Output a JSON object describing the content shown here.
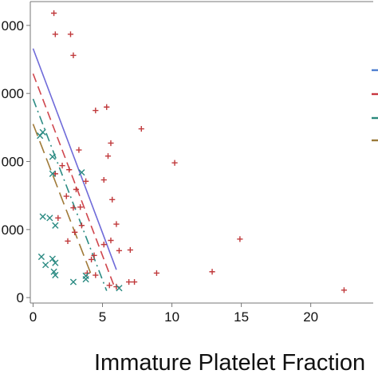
{
  "chart_data": {
    "type": "scatter",
    "xlabel": "Immature Platelet Fraction",
    "x_ticks": [
      0,
      5,
      10,
      15,
      20
    ],
    "x_tick_labels": [
      "0",
      "5",
      "10",
      "15",
      "20"
    ],
    "xlim": [
      -0.2,
      24.5
    ],
    "y_ticks": [
      0,
      1000,
      2000,
      3000,
      4000
    ],
    "y_tick_labels": [
      "0",
      "000",
      "000",
      "000",
      "000"
    ],
    "ylim": [
      -80,
      4350
    ],
    "grid": false,
    "legend_position": "right",
    "series": [
      {
        "marker": "plus",
        "color": "#c0393b",
        "points": [
          [
            1.5,
            4180
          ],
          [
            1.6,
            3870
          ],
          [
            2.7,
            3870
          ],
          [
            2.9,
            3560
          ],
          [
            5.3,
            2800
          ],
          [
            4.5,
            2750
          ],
          [
            7.8,
            2480
          ],
          [
            5.6,
            2270
          ],
          [
            3.3,
            2170
          ],
          [
            5.4,
            2080
          ],
          [
            10.2,
            1980
          ],
          [
            2.1,
            1940
          ],
          [
            2.6,
            1880
          ],
          [
            1.6,
            1820
          ],
          [
            3.8,
            1710
          ],
          [
            5.1,
            1730
          ],
          [
            3.1,
            1590
          ],
          [
            5.7,
            1440
          ],
          [
            2.4,
            1490
          ],
          [
            2.9,
            1320
          ],
          [
            3.4,
            1330
          ],
          [
            1.8,
            1170
          ],
          [
            3.5,
            1060
          ],
          [
            6.0,
            1080
          ],
          [
            3.0,
            960
          ],
          [
            5.6,
            840
          ],
          [
            14.9,
            860
          ],
          [
            2.5,
            830
          ],
          [
            5.1,
            780
          ],
          [
            6.2,
            690
          ],
          [
            4.4,
            620
          ],
          [
            7.0,
            700
          ],
          [
            4.2,
            560
          ],
          [
            12.9,
            380
          ],
          [
            8.9,
            360
          ],
          [
            3.9,
            360
          ],
          [
            6.9,
            230
          ],
          [
            7.3,
            230
          ],
          [
            6.0,
            160
          ],
          [
            5.5,
            180
          ],
          [
            22.4,
            110
          ],
          [
            4.5,
            330
          ]
        ]
      },
      {
        "marker": "cross",
        "color": "#2a8a82",
        "points": [
          [
            0.7,
            2430
          ],
          [
            0.5,
            2380
          ],
          [
            1.4,
            2070
          ],
          [
            3.5,
            1840
          ],
          [
            1.4,
            1820
          ],
          [
            0.7,
            1190
          ],
          [
            1.2,
            1170
          ],
          [
            1.6,
            1060
          ],
          [
            0.6,
            600
          ],
          [
            1.4,
            570
          ],
          [
            0.9,
            480
          ],
          [
            1.6,
            510
          ],
          [
            1.5,
            380
          ],
          [
            1.6,
            330
          ],
          [
            3.8,
            320
          ],
          [
            3.8,
            270
          ],
          [
            2.9,
            230
          ],
          [
            6.2,
            140
          ]
        ]
      }
    ],
    "fit_lines": [
      {
        "color": "#6f6bd9",
        "dash": "solid",
        "from": [
          0.0,
          3660
        ],
        "to": [
          6.0,
          410
        ]
      },
      {
        "color": "#d0464d",
        "dash": "dashed",
        "from": [
          0.0,
          3290
        ],
        "to": [
          5.8,
          190
        ]
      },
      {
        "color": "#2c8c84",
        "dash": "dashdot",
        "from": [
          0.0,
          2920
        ],
        "to": [
          5.3,
          100
        ]
      },
      {
        "color": "#a07a38",
        "dash": "longdash",
        "from": [
          0.0,
          2550
        ],
        "to": [
          4.2,
          330
        ]
      }
    ],
    "legend_swatches": [
      "#4f7fd0",
      "#c8363f",
      "#2a8a7c",
      "#9a7a3a"
    ]
  }
}
